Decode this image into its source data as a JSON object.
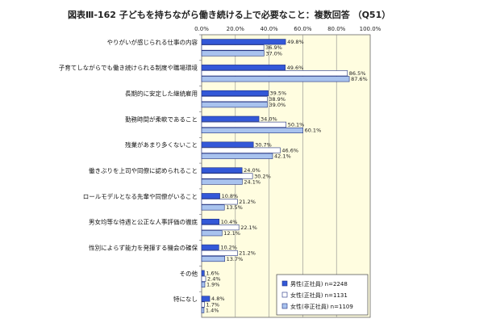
{
  "chart_data": {
    "type": "bar",
    "orientation": "horizontal",
    "title": "図表Ⅲ-162 子どもを持ちながら働き続ける上で必要なこと：複数回答 （Q51）",
    "xlim": [
      0,
      100
    ],
    "x_ticks": [
      "0.0%",
      "20.0%",
      "40.0%",
      "60.0%",
      "80.0%",
      "100.0%"
    ],
    "grid": true,
    "legend_position": "bottom-right",
    "categories": [
      "やりがいが感じられる仕事の内容",
      "子育てしながらでも働き続けられる制度や職場環境",
      "長期的に安定した継続雇用",
      "勤務時間が柔軟であること",
      "残業があまり多くないこと",
      "働きぶりを上司や同僚に認められること",
      "ロールモデルとなる先輩や同僚がいること",
      "男女均等な待遇と公正な人事評価の徹底",
      "性別によらず能力を発揮する機会の確保",
      "その他",
      "特になし"
    ],
    "series": [
      {
        "name": "男性(正社員) n=2248",
        "color": "#3358d8",
        "values": [
          49.8,
          49.6,
          39.5,
          34.0,
          30.7,
          24.0,
          10.8,
          10.4,
          10.2,
          1.6,
          4.8
        ],
        "labels": [
          "49.8%",
          "49.6%",
          "39.5%",
          "34.0%",
          "30.7%",
          "24.0%",
          "10.8%",
          "10.4%",
          "10.2%",
          "1.6%",
          "4.8%"
        ]
      },
      {
        "name": "女性(正社員) n=1131",
        "color": "#ffffff",
        "values": [
          36.9,
          86.5,
          38.9,
          50.1,
          46.6,
          30.2,
          21.2,
          22.1,
          21.2,
          2.4,
          1.7
        ],
        "labels": [
          "36.9%",
          "86.5%",
          "38.9%",
          "50.1%",
          "46.6%",
          "30.2%",
          "21.2%",
          "22.1%",
          "21.2%",
          "2.4%",
          "1.7%"
        ]
      },
      {
        "name": "女性(非正社員) n=1109",
        "color": "#a9c3ee",
        "values": [
          37.0,
          87.6,
          39.0,
          60.1,
          42.1,
          24.1,
          13.5,
          12.1,
          13.7,
          1.9,
          1.4
        ],
        "labels": [
          "37.0%",
          "87.6%",
          "39.0%",
          "60.1%",
          "42.1%",
          "24.1%",
          "13.5%",
          "12.1%",
          "13.7%",
          "1.9%",
          "1.4%"
        ]
      }
    ]
  }
}
